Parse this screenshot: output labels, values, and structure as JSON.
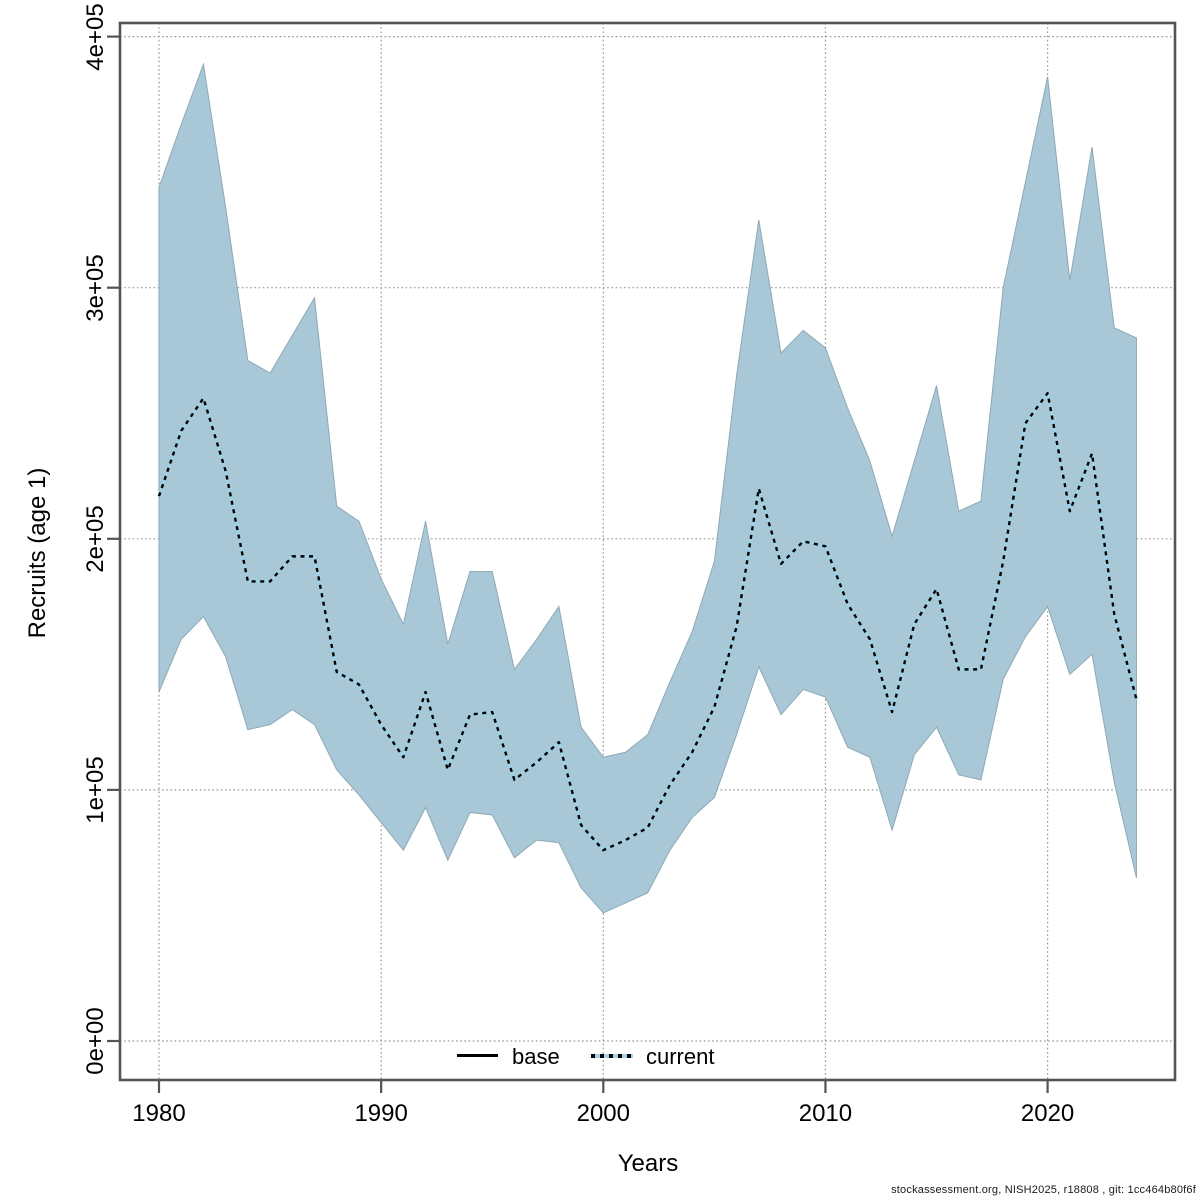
{
  "chart_data": {
    "type": "line",
    "title": "",
    "xlabel": "Years",
    "ylabel": "Recruits (age 1)",
    "x_ticks": [
      1980,
      1990,
      2000,
      2010,
      2020
    ],
    "y_ticks": [
      {
        "label": "0e+00",
        "value": 0
      },
      {
        "label": "1e+05",
        "value": 100000
      },
      {
        "label": "2e+05",
        "value": 200000
      },
      {
        "label": "3e+05",
        "value": 300000
      },
      {
        "label": "4e+05",
        "value": 400000
      }
    ],
    "xlim": [
      1978.2,
      2025.8
    ],
    "ylim": [
      0,
      405000
    ],
    "grid": true,
    "legend_position": "bottom-center",
    "years": [
      1980,
      1981,
      1982,
      1983,
      1984,
      1985,
      1986,
      1987,
      1988,
      1989,
      1990,
      1991,
      1992,
      1993,
      1994,
      1995,
      1996,
      1997,
      1998,
      1999,
      2000,
      2001,
      2002,
      2003,
      2004,
      2005,
      2006,
      2007,
      2008,
      2009,
      2010,
      2011,
      2012,
      2013,
      2014,
      2015,
      2016,
      2017,
      2018,
      2019,
      2020,
      2021,
      2022,
      2023,
      2024
    ],
    "series": [
      {
        "name": "current",
        "style": "dotted",
        "values": [
          217000,
          243000,
          256000,
          227000,
          183000,
          183000,
          193000,
          193000,
          147000,
          142000,
          126000,
          113000,
          139000,
          108000,
          130000,
          131000,
          104000,
          111000,
          119000,
          86000,
          76000,
          80000,
          85000,
          102000,
          115000,
          133000,
          165000,
          220000,
          190000,
          199000,
          197000,
          174000,
          160000,
          131000,
          166000,
          180000,
          148000,
          148000,
          191000,
          246000,
          258000,
          211000,
          234000,
          170000,
          136000
        ]
      }
    ],
    "band": {
      "name": "confidence-interval",
      "lower": [
        139000,
        160000,
        169000,
        153000,
        124000,
        126000,
        132000,
        126000,
        108000,
        98000,
        87000,
        76000,
        93000,
        72000,
        91000,
        90000,
        73000,
        80000,
        79000,
        61000,
        51000,
        55000,
        59000,
        76000,
        89000,
        97000,
        122000,
        149000,
        130000,
        140000,
        137000,
        117000,
        113000,
        84000,
        114000,
        125000,
        106000,
        104000,
        144000,
        161000,
        173000,
        146000,
        154000,
        103000,
        65000
      ],
      "upper": [
        340000,
        365000,
        389000,
        332000,
        271000,
        266000,
        281000,
        296000,
        213000,
        207000,
        184000,
        166000,
        207000,
        158000,
        187000,
        187000,
        148000,
        160000,
        173000,
        125000,
        113000,
        115000,
        122000,
        143000,
        163000,
        191000,
        265000,
        327000,
        274000,
        283000,
        276000,
        252000,
        231000,
        201000,
        231000,
        261000,
        211000,
        215000,
        300000,
        342000,
        384000,
        303000,
        356000,
        284000,
        280000
      ]
    },
    "legend": [
      {
        "label": "base",
        "line": "solid",
        "color": "#000000"
      },
      {
        "label": "current",
        "line": "dashed",
        "color": "#a5d3ea",
        "dash_color": "#000000"
      }
    ],
    "colors": {
      "band_fill": "#a8c8d8",
      "current_line": "#9fd0e6",
      "current_dash": "#000000",
      "gridline": "#979797",
      "axis_border": "#545454",
      "text": "#000000"
    },
    "footer": "stockassessment.org, NISH2025, r18808 , git: 1cc464b80f6f"
  }
}
